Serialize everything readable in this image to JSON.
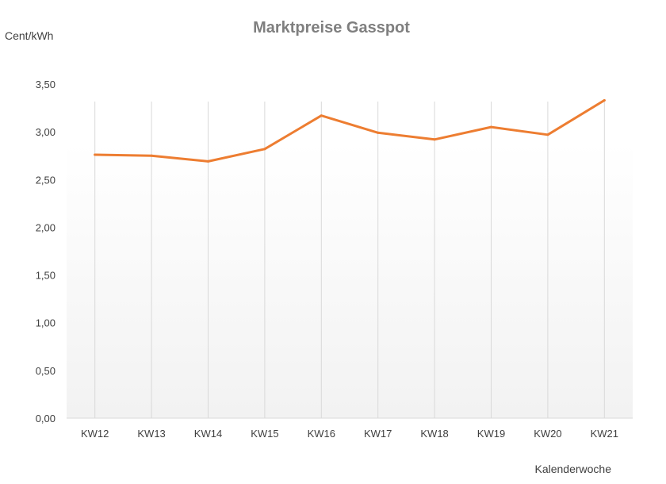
{
  "chart_data": {
    "type": "line",
    "title": "Marktpreise Gasspot",
    "xlabel": "Kalenderwoche",
    "ylabel": "Cent/kWh",
    "categories": [
      "KW12",
      "KW13",
      "KW14",
      "KW15",
      "KW16",
      "KW17",
      "KW18",
      "KW19",
      "KW20",
      "KW21"
    ],
    "series": [
      {
        "values": [
          2.76,
          2.75,
          2.69,
          2.82,
          3.17,
          2.99,
          2.92,
          3.05,
          2.97,
          3.33
        ]
      }
    ],
    "ylim": [
      0,
      3.5
    ],
    "yticks": [
      "0,00",
      "0,50",
      "1,00",
      "1,50",
      "2,00",
      "2,50",
      "3,00",
      "3,50"
    ],
    "grid": "vertical",
    "legend": "none",
    "colors": {
      "line": "#ed7d31",
      "grid": "#d9d9d9",
      "title": "#7f7f7f",
      "text": "#404040",
      "plot_gradient_top": "#ffffff",
      "plot_gradient_bottom": "#f2f2f2"
    }
  }
}
